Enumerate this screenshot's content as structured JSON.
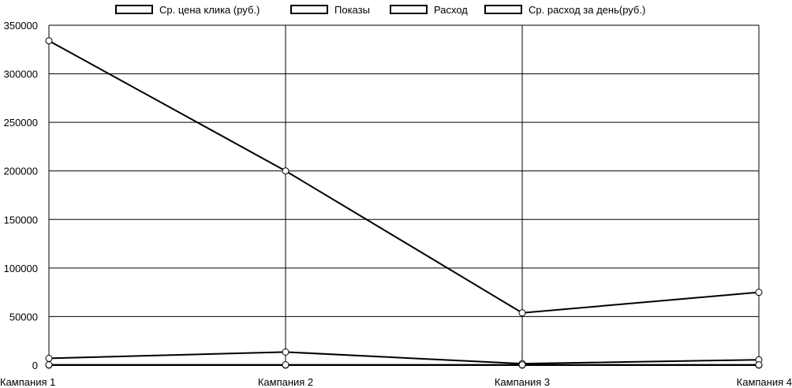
{
  "chart_data": {
    "type": "line",
    "categories": [
      "Кампания 1",
      "Кампания 2",
      "Кампания 3",
      "Кампания 4"
    ],
    "series": [
      {
        "name": "Ср. цена клика (руб.)",
        "values": [
          0,
          0,
          0,
          0
        ]
      },
      {
        "name": "Показы",
        "values": [
          334000,
          200000,
          53800,
          75000
        ]
      },
      {
        "name": "Расход",
        "values": [
          7000,
          13500,
          1500,
          5500
        ]
      },
      {
        "name": "Ср. расход за день(руб.)",
        "values": [
          300,
          300,
          300,
          300
        ]
      }
    ],
    "ylim": [
      0,
      350000
    ],
    "y_ticks": [
      "0",
      "50000",
      "100000",
      "150000",
      "200000",
      "250000",
      "300000",
      "350000"
    ],
    "grid": true,
    "legend_position": "top"
  }
}
